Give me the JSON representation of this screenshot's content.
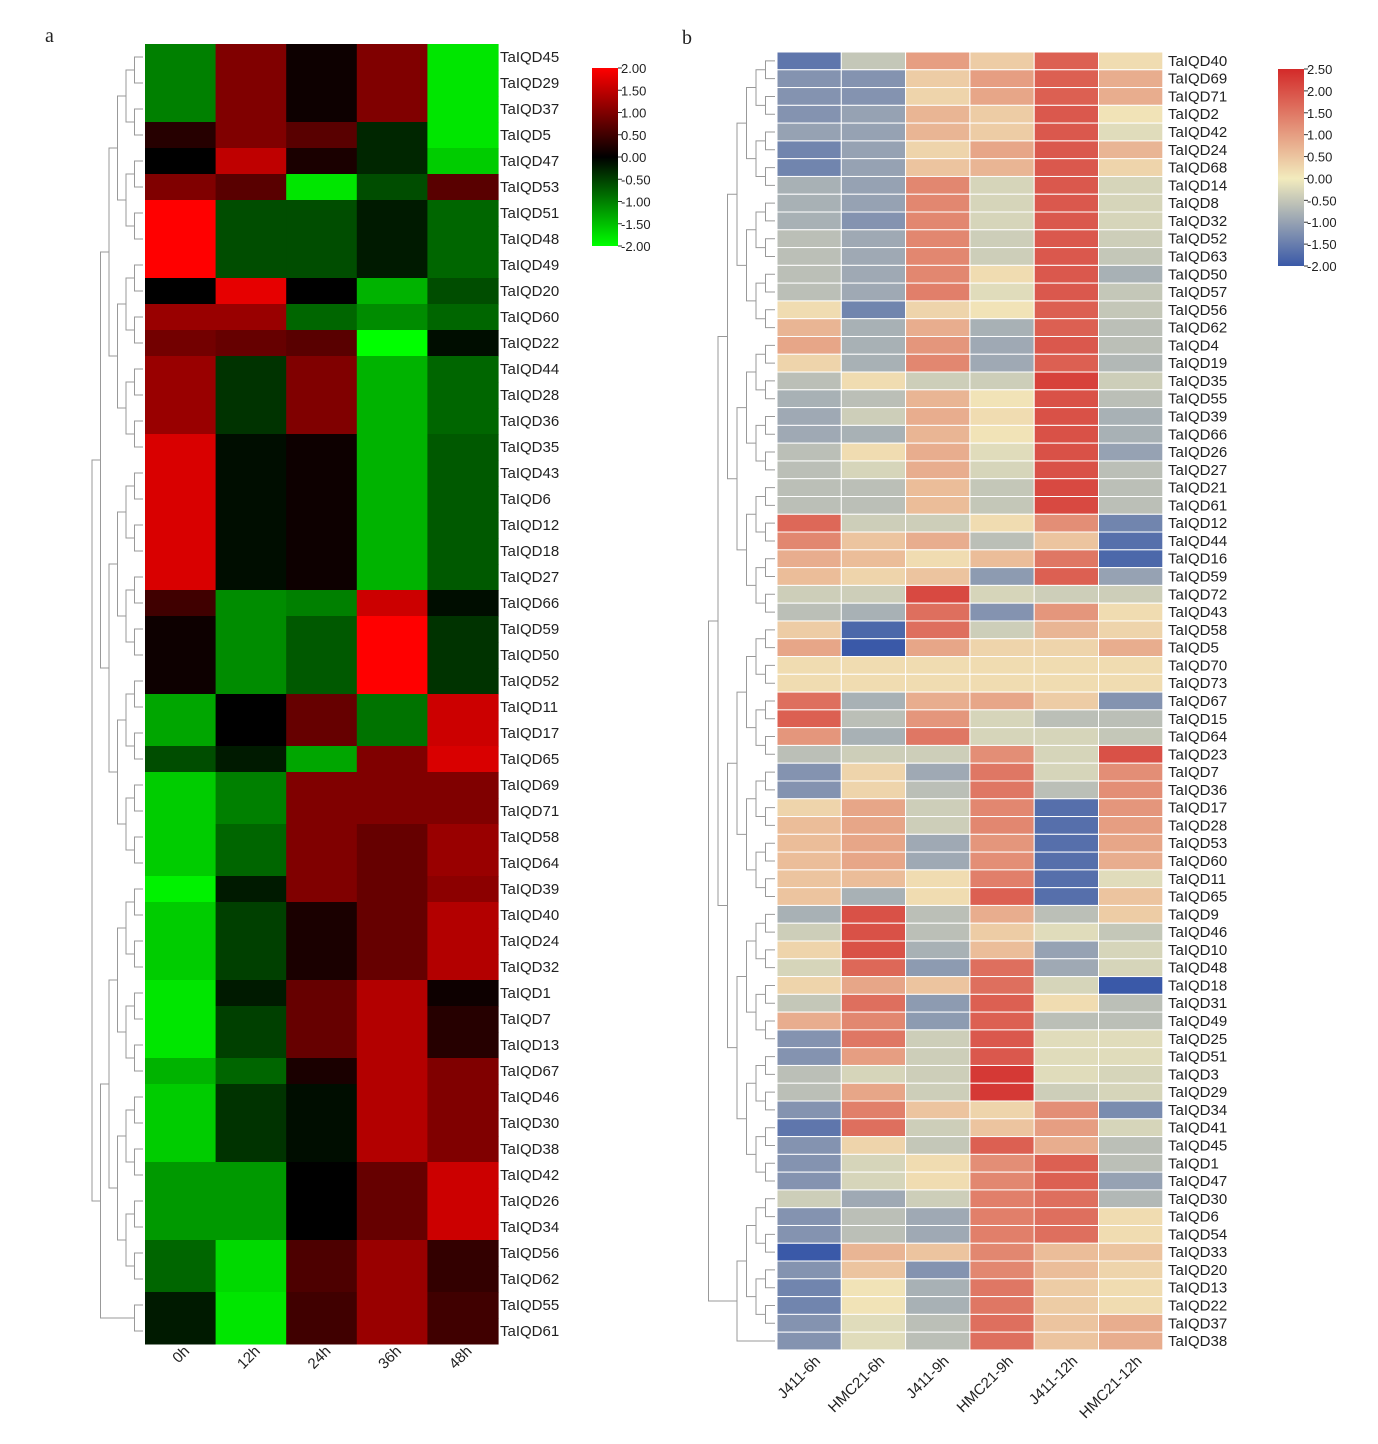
{
  "figure": {
    "panel_a_label": "a",
    "panel_b_label": "b"
  },
  "chart_data": [
    {
      "type": "heatmap",
      "panel": "a",
      "title": "",
      "columns": [
        "0h",
        "12h",
        "24h",
        "36h",
        "48h"
      ],
      "rows": [
        "TaIQD45",
        "TaIQD29",
        "TaIQD37",
        "TaIQD5",
        "TaIQD47",
        "TaIQD53",
        "TaIQD51",
        "TaIQD48",
        "TaIQD49",
        "TaIQD20",
        "TaIQD60",
        "TaIQD22",
        "TaIQD44",
        "TaIQD28",
        "TaIQD36",
        "TaIQD35",
        "TaIQD43",
        "TaIQD6",
        "TaIQD12",
        "TaIQD18",
        "TaIQD27",
        "TaIQD66",
        "TaIQD59",
        "TaIQD50",
        "TaIQD52",
        "TaIQD11",
        "TaIQD17",
        "TaIQD65",
        "TaIQD69",
        "TaIQD71",
        "TaIQD58",
        "TaIQD64",
        "TaIQD39",
        "TaIQD40",
        "TaIQD24",
        "TaIQD32",
        "TaIQD1",
        "TaIQD7",
        "TaIQD13",
        "TaIQD67",
        "TaIQD46",
        "TaIQD30",
        "TaIQD38",
        "TaIQD42",
        "TaIQD26",
        "TaIQD34",
        "TaIQD56",
        "TaIQD62",
        "TaIQD55",
        "TaIQD61"
      ],
      "values": [
        [
          -1.0,
          1.0,
          0.1,
          1.0,
          -1.8
        ],
        [
          -1.0,
          1.0,
          0.1,
          1.0,
          -1.8
        ],
        [
          -1.0,
          1.0,
          0.1,
          1.0,
          -1.8
        ],
        [
          0.3,
          1.0,
          0.7,
          -0.3,
          -1.8
        ],
        [
          0.0,
          1.5,
          0.2,
          -0.3,
          -1.6
        ],
        [
          1.0,
          0.7,
          -1.8,
          -0.6,
          0.7
        ],
        [
          2.0,
          -0.6,
          -0.6,
          -0.2,
          -0.8
        ],
        [
          2.0,
          -0.6,
          -0.6,
          -0.2,
          -0.8
        ],
        [
          2.0,
          -0.6,
          -0.6,
          -0.2,
          -0.8
        ],
        [
          0.0,
          1.8,
          0.0,
          -1.4,
          -0.6
        ],
        [
          1.2,
          1.2,
          -0.8,
          -1.1,
          -0.8
        ],
        [
          0.9,
          0.8,
          0.7,
          -2.0,
          -0.1
        ],
        [
          1.2,
          -0.4,
          1.0,
          -1.4,
          -0.8
        ],
        [
          1.2,
          -0.4,
          1.0,
          -1.4,
          -0.8
        ],
        [
          1.2,
          -0.4,
          1.0,
          -1.4,
          -0.8
        ],
        [
          1.7,
          -0.1,
          0.1,
          -1.4,
          -0.7
        ],
        [
          1.7,
          -0.1,
          0.1,
          -1.4,
          -0.7
        ],
        [
          1.7,
          -0.1,
          0.1,
          -1.4,
          -0.7
        ],
        [
          1.7,
          -0.1,
          0.1,
          -1.4,
          -0.7
        ],
        [
          1.7,
          -0.1,
          0.1,
          -1.4,
          -0.7
        ],
        [
          1.7,
          -0.1,
          0.1,
          -1.4,
          -0.7
        ],
        [
          0.5,
          -1.1,
          -1.0,
          1.6,
          -0.1
        ],
        [
          0.1,
          -1.1,
          -0.7,
          2.0,
          -0.4
        ],
        [
          0.1,
          -1.1,
          -0.7,
          2.0,
          -0.4
        ],
        [
          0.1,
          -1.1,
          -0.7,
          2.0,
          -0.4
        ],
        [
          -1.3,
          0.0,
          0.8,
          -0.9,
          1.6
        ],
        [
          -1.3,
          0.0,
          0.8,
          -0.9,
          1.6
        ],
        [
          -0.6,
          -0.2,
          -1.3,
          1.0,
          1.7
        ],
        [
          -1.6,
          -1.0,
          1.0,
          1.0,
          1.0
        ],
        [
          -1.6,
          -1.0,
          1.0,
          1.0,
          1.0
        ],
        [
          -1.6,
          -0.8,
          1.0,
          0.8,
          1.2
        ],
        [
          -1.6,
          -0.8,
          1.0,
          0.8,
          1.2
        ],
        [
          -1.9,
          -0.2,
          1.0,
          0.8,
          1.1
        ],
        [
          -1.6,
          -0.5,
          0.2,
          0.8,
          1.4
        ],
        [
          -1.6,
          -0.5,
          0.2,
          0.8,
          1.4
        ],
        [
          -1.6,
          -0.5,
          0.2,
          0.8,
          1.4
        ],
        [
          -1.8,
          -0.2,
          0.8,
          1.4,
          0.1
        ],
        [
          -1.8,
          -0.5,
          0.8,
          1.4,
          0.3
        ],
        [
          -1.8,
          -0.5,
          0.8,
          1.4,
          0.3
        ],
        [
          -1.4,
          -0.8,
          0.2,
          1.4,
          1.0
        ],
        [
          -1.6,
          -0.4,
          -0.1,
          1.4,
          1.0
        ],
        [
          -1.6,
          -0.4,
          -0.1,
          1.4,
          1.0
        ],
        [
          -1.6,
          -0.4,
          -0.1,
          1.4,
          1.0
        ],
        [
          -1.2,
          -1.2,
          0.0,
          0.8,
          1.6
        ],
        [
          -1.2,
          -1.2,
          0.0,
          0.8,
          1.6
        ],
        [
          -1.2,
          -1.2,
          0.0,
          0.8,
          1.6
        ],
        [
          -0.8,
          -1.7,
          0.6,
          1.2,
          0.4
        ],
        [
          -0.8,
          -1.7,
          0.6,
          1.2,
          0.4
        ],
        [
          -0.2,
          -1.8,
          0.5,
          1.2,
          0.5
        ],
        [
          -0.2,
          -1.8,
          0.5,
          1.2,
          0.5
        ]
      ],
      "color_scale": {
        "min": -2.0,
        "max": 2.0,
        "low_color": "#00ff00",
        "mid_color": "#000000",
        "high_color": "#ff0000",
        "ticks": [
          "2.00",
          "1.50",
          "1.00",
          "0.50",
          "0.00",
          "-0.50",
          "-1.00",
          "-1.50",
          "-2.00"
        ]
      }
    },
    {
      "type": "heatmap",
      "panel": "b",
      "title": "",
      "columns": [
        "J411-6h",
        "HMC21-6h",
        "J411-9h",
        "HMC21-9h",
        "J411-12h",
        "HMC21-12h"
      ],
      "rows": [
        "TaIQD40",
        "TaIQD69",
        "TaIQD71",
        "TaIQD2",
        "TaIQD42",
        "TaIQD24",
        "TaIQD68",
        "TaIQD14",
        "TaIQD8",
        "TaIQD32",
        "TaIQD52",
        "TaIQD63",
        "TaIQD50",
        "TaIQD57",
        "TaIQD56",
        "TaIQD62",
        "TaIQD4",
        "TaIQD19",
        "TaIQD35",
        "TaIQD55",
        "TaIQD39",
        "TaIQD66",
        "TaIQD26",
        "TaIQD27",
        "TaIQD21",
        "TaIQD61",
        "TaIQD12",
        "TaIQD44",
        "TaIQD16",
        "TaIQD59",
        "TaIQD72",
        "TaIQD43",
        "TaIQD58",
        "TaIQD5",
        "TaIQD70",
        "TaIQD73",
        "TaIQD67",
        "TaIQD15",
        "TaIQD64",
        "TaIQD23",
        "TaIQD7",
        "TaIQD36",
        "TaIQD17",
        "TaIQD28",
        "TaIQD53",
        "TaIQD60",
        "TaIQD11",
        "TaIQD65",
        "TaIQD9",
        "TaIQD46",
        "TaIQD10",
        "TaIQD48",
        "TaIQD18",
        "TaIQD31",
        "TaIQD49",
        "TaIQD25",
        "TaIQD51",
        "TaIQD3",
        "TaIQD29",
        "TaIQD34",
        "TaIQD41",
        "TaIQD45",
        "TaIQD1",
        "TaIQD47",
        "TaIQD30",
        "TaIQD6",
        "TaIQD54",
        "TaIQD33",
        "TaIQD20",
        "TaIQD13",
        "TaIQD22",
        "TaIQD37",
        "TaIQD38"
      ],
      "values": [
        [
          -1.6,
          -0.5,
          1.0,
          0.4,
          1.8,
          0.2
        ],
        [
          -1.2,
          -1.2,
          0.4,
          1.0,
          1.8,
          0.8
        ],
        [
          -1.2,
          -1.2,
          0.3,
          0.9,
          1.8,
          0.8
        ],
        [
          -1.2,
          -1.0,
          0.7,
          0.4,
          1.9,
          0.1
        ],
        [
          -1.0,
          -1.0,
          0.7,
          0.4,
          1.9,
          -0.2
        ],
        [
          -1.4,
          -1.0,
          0.3,
          0.9,
          1.9,
          0.7
        ],
        [
          -1.4,
          -1.0,
          0.5,
          0.7,
          1.9,
          0.3
        ],
        [
          -0.8,
          -1.0,
          1.3,
          -0.3,
          1.9,
          -0.3
        ],
        [
          -0.8,
          -1.0,
          1.3,
          -0.3,
          1.9,
          -0.3
        ],
        [
          -0.8,
          -1.2,
          1.3,
          -0.3,
          1.9,
          -0.3
        ],
        [
          -0.6,
          -0.9,
          1.3,
          -0.4,
          1.9,
          -0.4
        ],
        [
          -0.6,
          -0.9,
          1.3,
          -0.4,
          1.9,
          -0.5
        ],
        [
          -0.6,
          -0.9,
          1.3,
          0.2,
          1.9,
          -0.8
        ],
        [
          -0.6,
          -0.9,
          1.4,
          -0.2,
          1.9,
          -0.5
        ],
        [
          0.2,
          -1.4,
          0.3,
          0.1,
          1.8,
          -0.5
        ],
        [
          0.7,
          -0.8,
          0.8,
          -0.8,
          1.8,
          -0.6
        ],
        [
          0.9,
          -0.8,
          1.1,
          -0.9,
          1.9,
          -0.6
        ],
        [
          0.3,
          -0.8,
          1.3,
          -0.9,
          1.8,
          -0.7
        ],
        [
          -0.6,
          0.2,
          -0.4,
          -0.4,
          2.2,
          -0.4
        ],
        [
          -0.8,
          -0.6,
          0.7,
          0.1,
          2.0,
          -0.6
        ],
        [
          -0.9,
          -0.4,
          0.8,
          0.2,
          2.0,
          -0.8
        ],
        [
          -0.9,
          -0.8,
          0.7,
          0.1,
          2.0,
          -0.8
        ],
        [
          -0.6,
          0.2,
          0.8,
          -0.2,
          2.0,
          -1.0
        ],
        [
          -0.6,
          -0.3,
          0.8,
          -0.3,
          2.0,
          -0.6
        ],
        [
          -0.6,
          -0.6,
          0.6,
          -0.5,
          2.1,
          -0.6
        ],
        [
          -0.6,
          -0.6,
          0.6,
          -0.5,
          2.1,
          -0.6
        ],
        [
          1.7,
          -0.4,
          -0.4,
          0.2,
          1.2,
          -1.4
        ],
        [
          1.3,
          0.5,
          0.8,
          -0.6,
          0.5,
          -1.7
        ],
        [
          0.8,
          0.6,
          0.2,
          0.6,
          1.5,
          -1.8
        ],
        [
          0.6,
          0.3,
          0.5,
          -1.1,
          1.8,
          -1.0
        ],
        [
          -0.4,
          -0.4,
          2.1,
          -0.3,
          -0.4,
          -0.4
        ],
        [
          -0.6,
          -0.8,
          1.6,
          -1.2,
          1.1,
          0.2
        ],
        [
          0.4,
          -1.8,
          1.6,
          -0.4,
          0.7,
          0.3
        ],
        [
          0.9,
          -2.0,
          0.9,
          0.3,
          0.3,
          0.8
        ],
        [
          0.2,
          0.2,
          0.2,
          0.2,
          0.2,
          0.2
        ],
        [
          0.2,
          0.2,
          0.2,
          0.2,
          0.2,
          0.2
        ],
        [
          1.6,
          -0.8,
          0.8,
          0.9,
          0.4,
          -1.2
        ],
        [
          1.8,
          -0.6,
          1.1,
          -0.3,
          -0.6,
          -0.6
        ],
        [
          1.1,
          -0.8,
          1.5,
          -0.3,
          -0.3,
          -0.5
        ],
        [
          -0.6,
          -0.4,
          -0.4,
          1.2,
          -0.3,
          2.0
        ],
        [
          -1.2,
          0.3,
          -0.9,
          1.5,
          -0.3,
          1.2
        ],
        [
          -1.2,
          0.3,
          -0.6,
          1.5,
          -0.6,
          1.2
        ],
        [
          0.3,
          0.9,
          -0.4,
          1.3,
          -1.7,
          1.1
        ],
        [
          0.6,
          0.9,
          -0.4,
          1.3,
          -1.7,
          1.0
        ],
        [
          0.6,
          0.9,
          -0.9,
          1.1,
          -1.7,
          0.9
        ],
        [
          0.6,
          0.9,
          -0.9,
          1.2,
          -1.7,
          0.8
        ],
        [
          0.5,
          0.6,
          0.2,
          1.4,
          -1.7,
          -0.2
        ],
        [
          0.5,
          -0.8,
          0.2,
          1.8,
          -1.7,
          0.5
        ],
        [
          -0.8,
          2.0,
          -0.6,
          0.8,
          -0.6,
          0.4
        ],
        [
          -0.4,
          2.0,
          -0.6,
          0.4,
          -0.2,
          -0.5
        ],
        [
          0.3,
          2.0,
          -0.8,
          0.6,
          -1.0,
          -0.3
        ],
        [
          -0.3,
          1.7,
          -1.1,
          1.6,
          -0.9,
          -0.3
        ],
        [
          0.3,
          0.9,
          0.5,
          1.6,
          -0.3,
          -2.0
        ],
        [
          -0.5,
          1.6,
          -1.1,
          1.8,
          0.2,
          -0.6
        ],
        [
          0.8,
          1.3,
          -1.1,
          1.8,
          -0.6,
          -0.6
        ],
        [
          -1.2,
          1.5,
          -0.4,
          1.9,
          -0.2,
          -0.2
        ],
        [
          -1.2,
          1.0,
          -0.4,
          1.9,
          -0.2,
          -0.2
        ],
        [
          -0.6,
          -0.3,
          -0.4,
          2.3,
          -0.2,
          -0.3
        ],
        [
          -0.6,
          0.9,
          -0.4,
          2.3,
          -0.4,
          -0.3
        ],
        [
          -1.2,
          1.4,
          0.5,
          0.3,
          1.2,
          -1.3
        ],
        [
          -1.6,
          1.6,
          -0.4,
          0.5,
          1.0,
          -0.3
        ],
        [
          -1.2,
          0.3,
          -0.5,
          1.8,
          0.8,
          -0.6
        ],
        [
          -1.2,
          -0.3,
          0.2,
          1.2,
          1.8,
          -0.6
        ],
        [
          -1.2,
          -0.3,
          0.2,
          1.3,
          1.8,
          -1.0
        ],
        [
          -0.4,
          -0.9,
          -0.4,
          1.4,
          1.6,
          -0.7
        ],
        [
          -1.2,
          -0.6,
          -0.9,
          1.4,
          1.6,
          0.2
        ],
        [
          -1.2,
          -0.6,
          -0.9,
          1.4,
          1.6,
          0.2
        ],
        [
          -2.0,
          0.7,
          0.5,
          1.3,
          0.6,
          0.5
        ],
        [
          -1.2,
          0.5,
          -1.2,
          1.3,
          0.6,
          0.3
        ],
        [
          -1.4,
          0.1,
          -0.8,
          1.5,
          0.4,
          0.2
        ],
        [
          -1.4,
          0.1,
          -0.8,
          1.5,
          0.4,
          0.2
        ],
        [
          -1.2,
          -0.2,
          -0.6,
          1.6,
          0.5,
          0.8
        ],
        [
          -1.2,
          -0.2,
          -0.6,
          1.6,
          0.5,
          0.8
        ]
      ],
      "color_scale": {
        "min": -2.0,
        "max": 2.5,
        "low_color": "#3a59a8",
        "mid_color": "#f2ebbd",
        "high_color": "#d32a29",
        "ticks": [
          "2.50",
          "2.00",
          "1.50",
          "1.00",
          "0.50",
          "0.00",
          "-0.50",
          "-1.00",
          "-1.50",
          "-2.00"
        ]
      }
    }
  ]
}
